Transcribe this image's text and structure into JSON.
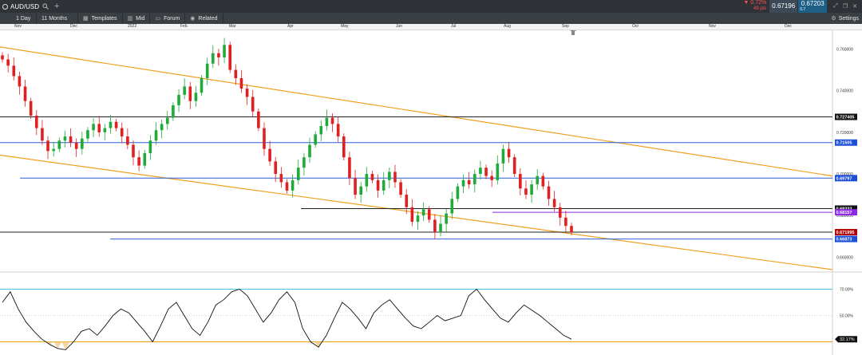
{
  "window": {
    "symbol": "AUD/USD",
    "change_pct": "▼ 0.72%",
    "change_pips": "49 pts",
    "sell_price": "0.67196",
    "buy_price": "0.67203",
    "spread": "0.7"
  },
  "toolbar": {
    "interval": "1 Day",
    "range": "11 Months",
    "templates": "Templates",
    "mid": "Mid",
    "forum": "Forum",
    "related": "Related",
    "settings": "Settings"
  },
  "month_axis": [
    "Nov",
    "Dec",
    "2022",
    "Feb",
    "Mar",
    "Apr",
    "May",
    "Jun",
    "Jul",
    "Aug",
    "Sep",
    "Oct",
    "Nov",
    "Dec"
  ],
  "price_axis": {
    "ticks": [
      "0.760000",
      "0.740000",
      "0.720000",
      "0.700000",
      "0.680000",
      "0.660000"
    ],
    "labels": [
      {
        "text": "0.727405",
        "color": "#111111"
      },
      {
        "text": "0.71505",
        "color": "#1d4fd6"
      },
      {
        "text": "0.69797",
        "color": "#1d4fd6"
      },
      {
        "text": "0.68333",
        "color": "#111111"
      },
      {
        "text": "0.68157",
        "color": "#8a2be2"
      },
      {
        "text": "0.671995",
        "color": "#b30000"
      },
      {
        "text": "0.66873",
        "color": "#1d4fd6"
      }
    ]
  },
  "rsi": {
    "ticks": [
      "70.00%",
      "50.00%"
    ],
    "value": "32.17%",
    "upper_line_color": "#4ec3e8",
    "lower_line_color": "#e5a400"
  },
  "colors": {
    "bull": "#1faa3a",
    "bear": "#e02020",
    "channel": "#f0a020",
    "support_blue": "#2d5fd6",
    "level_black": "#222222"
  },
  "chart_data": {
    "type": "candlestick",
    "title": "",
    "xlabel": "",
    "ylabel": "",
    "x_range": [
      "Nov 2021",
      "Dec 2022"
    ],
    "ylim": [
      0.654,
      0.769
    ],
    "grid": false,
    "close_path": [
      0.755,
      0.752,
      0.747,
      0.742,
      0.735,
      0.728,
      0.722,
      0.716,
      0.711,
      0.712,
      0.716,
      0.718,
      0.715,
      0.712,
      0.717,
      0.721,
      0.724,
      0.72,
      0.722,
      0.725,
      0.722,
      0.718,
      0.714,
      0.708,
      0.704,
      0.71,
      0.716,
      0.721,
      0.724,
      0.727,
      0.733,
      0.738,
      0.742,
      0.735,
      0.739,
      0.746,
      0.753,
      0.758,
      0.756,
      0.762,
      0.75,
      0.746,
      0.741,
      0.737,
      0.73,
      0.722,
      0.712,
      0.706,
      0.7,
      0.696,
      0.692,
      0.697,
      0.703,
      0.708,
      0.714,
      0.719,
      0.723,
      0.727,
      0.724,
      0.718,
      0.708,
      0.698,
      0.69,
      0.694,
      0.7,
      0.697,
      0.692,
      0.697,
      0.701,
      0.696,
      0.69,
      0.684,
      0.677,
      0.68,
      0.683,
      0.678,
      0.672,
      0.676,
      0.681,
      0.688,
      0.694,
      0.697,
      0.695,
      0.7,
      0.703,
      0.699,
      0.697,
      0.705,
      0.712,
      0.708,
      0.7,
      0.693,
      0.69,
      0.695,
      0.699,
      0.694,
      0.688,
      0.684,
      0.679,
      0.675,
      0.672
    ],
    "horizontal_levels": [
      {
        "value": 0.727405,
        "color": "#222222"
      },
      {
        "value": 0.71505,
        "color": "#2d5fd6"
      },
      {
        "value": 0.69797,
        "color": "#2d5fd6"
      },
      {
        "value": 0.68333,
        "color": "#222222"
      },
      {
        "value": 0.68157,
        "color": "#8a2be2"
      },
      {
        "value": 0.671995,
        "color": "#222222"
      },
      {
        "value": 0.66873,
        "color": "#2d5fd6"
      }
    ],
    "channel_lines": [
      {
        "from": [
          0,
          0.761
        ],
        "to": [
          1,
          0.699
        ],
        "color": "#f0a020"
      },
      {
        "from": [
          0,
          0.709
        ],
        "to": [
          1,
          0.654
        ],
        "color": "#f0a020"
      }
    ],
    "rsi_series": [
      60,
      68,
      55,
      45,
      38,
      32,
      28,
      25,
      24,
      30,
      38,
      40,
      35,
      42,
      50,
      55,
      52,
      45,
      38,
      30,
      42,
      55,
      60,
      50,
      40,
      35,
      45,
      58,
      62,
      68,
      70,
      65,
      55,
      45,
      52,
      62,
      68,
      60,
      40,
      30,
      26,
      35,
      48,
      60,
      55,
      48,
      40,
      52,
      58,
      62,
      55,
      48,
      42,
      40,
      45,
      50,
      46,
      48,
      50,
      65,
      70,
      62,
      55,
      48,
      45,
      52,
      58,
      54,
      50,
      45,
      40,
      35,
      32
    ],
    "rsi_ylim": [
      20,
      80
    ]
  }
}
